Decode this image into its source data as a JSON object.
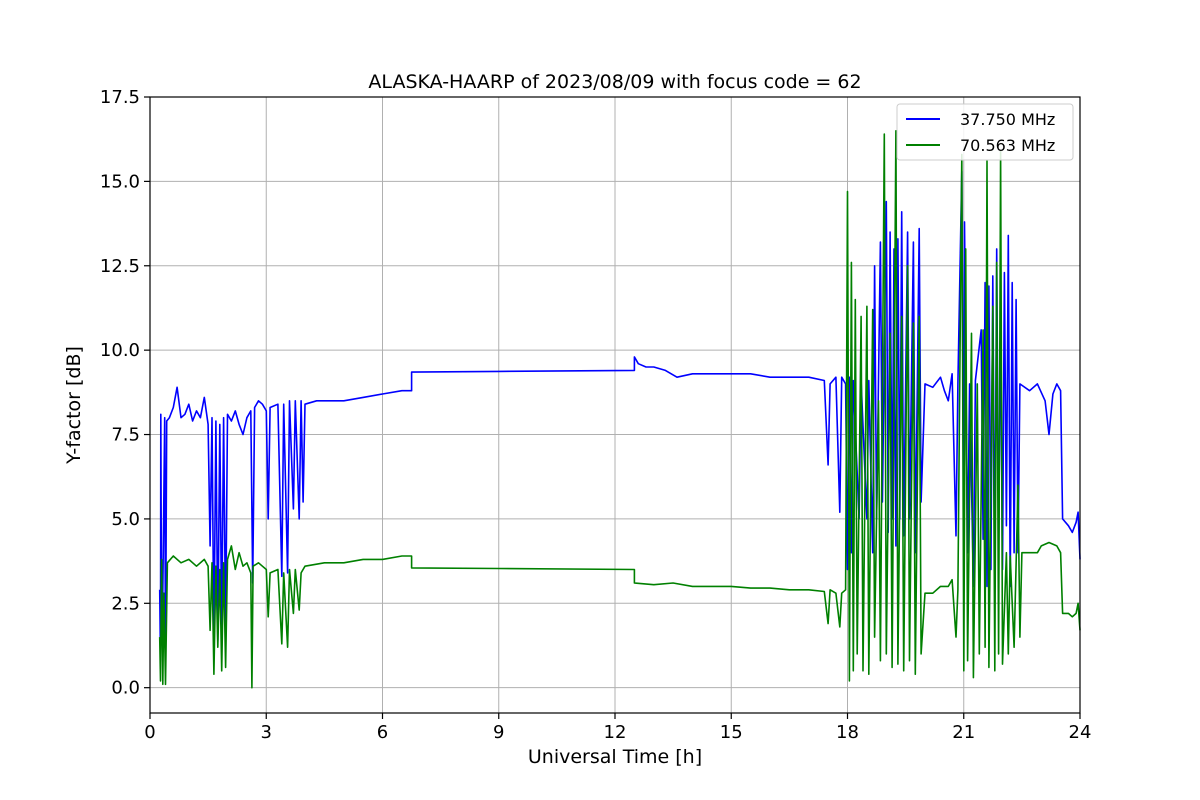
{
  "chart_data": {
    "type": "line",
    "title": "ALASKA-HAARP of 2023/08/09 with focus code = 62",
    "xlabel": "Universal Time [h]",
    "ylabel": "Y-factor [dB]",
    "xlim": [
      0,
      24
    ],
    "ylim": [
      -0.75,
      17.5
    ],
    "xticks": [
      0,
      3,
      6,
      9,
      12,
      15,
      18,
      21,
      24
    ],
    "xtick_labels": [
      "0",
      "3",
      "6",
      "9",
      "12",
      "15",
      "18",
      "21",
      "24"
    ],
    "yticks": [
      0,
      2.5,
      5,
      7.5,
      10,
      12.5,
      15,
      17.5
    ],
    "ytick_labels": [
      "0.0",
      "2.5",
      "5.0",
      "7.5",
      "10.0",
      "12.5",
      "15.0",
      "17.5"
    ],
    "grid": true,
    "legend_position": "top-right",
    "series": [
      {
        "name": "37.750 MHz",
        "color": "#0000ff",
        "points": [
          [
            0.25,
            2.9
          ],
          [
            0.27,
            0.8
          ],
          [
            0.28,
            8.1
          ],
          [
            0.3,
            1.5
          ],
          [
            0.33,
            2.8
          ],
          [
            0.38,
            8.0
          ],
          [
            0.4,
            0.5
          ],
          [
            0.43,
            7.9
          ],
          [
            0.5,
            8.0
          ],
          [
            0.6,
            8.3
          ],
          [
            0.7,
            8.9
          ],
          [
            0.8,
            8.0
          ],
          [
            0.9,
            8.1
          ],
          [
            1.0,
            8.4
          ],
          [
            1.1,
            7.9
          ],
          [
            1.2,
            8.2
          ],
          [
            1.3,
            8.0
          ],
          [
            1.4,
            8.6
          ],
          [
            1.5,
            7.8
          ],
          [
            1.55,
            4.2
          ],
          [
            1.6,
            8.0
          ],
          [
            1.65,
            1.3
          ],
          [
            1.7,
            7.9
          ],
          [
            1.75,
            1.4
          ],
          [
            1.8,
            7.8
          ],
          [
            1.85,
            1.6
          ],
          [
            1.9,
            8.0
          ],
          [
            1.95,
            1.6
          ],
          [
            2.0,
            8.1
          ],
          [
            2.1,
            7.9
          ],
          [
            2.2,
            8.2
          ],
          [
            2.3,
            7.8
          ],
          [
            2.4,
            7.5
          ],
          [
            2.5,
            8.0
          ],
          [
            2.6,
            8.2
          ],
          [
            2.65,
            3.1
          ],
          [
            2.7,
            8.3
          ],
          [
            2.8,
            8.5
          ],
          [
            2.9,
            8.4
          ],
          [
            3.0,
            8.2
          ],
          [
            3.05,
            5.0
          ],
          [
            3.1,
            8.3
          ],
          [
            3.3,
            8.4
          ],
          [
            3.4,
            3.3
          ],
          [
            3.45,
            8.4
          ],
          [
            3.55,
            3.4
          ],
          [
            3.6,
            8.5
          ],
          [
            3.7,
            5.3
          ],
          [
            3.75,
            8.5
          ],
          [
            3.85,
            5.0
          ],
          [
            3.9,
            8.5
          ],
          [
            3.95,
            5.5
          ],
          [
            4.0,
            8.4
          ],
          [
            4.3,
            8.5
          ],
          [
            4.6,
            8.5
          ],
          [
            5.0,
            8.5
          ],
          [
            5.5,
            8.6
          ],
          [
            6.0,
            8.7
          ],
          [
            6.5,
            8.8
          ],
          [
            6.75,
            8.8
          ],
          [
            6.75,
            9.35
          ],
          [
            9.0,
            9.37
          ],
          [
            12.5,
            9.4
          ],
          [
            12.5,
            9.8
          ],
          [
            12.6,
            9.6
          ],
          [
            12.8,
            9.5
          ],
          [
            13.0,
            9.5
          ],
          [
            13.3,
            9.4
          ],
          [
            13.6,
            9.2
          ],
          [
            14.0,
            9.3
          ],
          [
            14.5,
            9.3
          ],
          [
            15.0,
            9.3
          ],
          [
            15.5,
            9.3
          ],
          [
            16.0,
            9.2
          ],
          [
            16.5,
            9.2
          ],
          [
            17.0,
            9.2
          ],
          [
            17.4,
            9.1
          ],
          [
            17.5,
            6.6
          ],
          [
            17.55,
            9.0
          ],
          [
            17.7,
            9.2
          ],
          [
            17.8,
            5.2
          ],
          [
            17.85,
            9.2
          ],
          [
            17.95,
            9.0
          ],
          [
            18.0,
            3.5
          ],
          [
            18.05,
            9.2
          ],
          [
            18.1,
            4.0
          ],
          [
            18.15,
            9.1
          ],
          [
            18.3,
            5.0
          ],
          [
            18.35,
            9.1
          ],
          [
            18.5,
            5.0
          ],
          [
            18.55,
            9.1
          ],
          [
            18.65,
            4.0
          ],
          [
            18.7,
            12.5
          ],
          [
            18.75,
            5.0
          ],
          [
            18.85,
            13.2
          ],
          [
            18.9,
            5.5
          ],
          [
            19.0,
            14.4
          ],
          [
            19.05,
            4.6
          ],
          [
            19.1,
            13.5
          ],
          [
            19.15,
            5.0
          ],
          [
            19.2,
            13.0
          ],
          [
            19.25,
            4.2
          ],
          [
            19.3,
            13.3
          ],
          [
            19.35,
            5.0
          ],
          [
            19.4,
            14.1
          ],
          [
            19.45,
            4.5
          ],
          [
            19.55,
            13.5
          ],
          [
            19.6,
            5.0
          ],
          [
            19.7,
            13.2
          ],
          [
            19.75,
            4.0
          ],
          [
            19.85,
            13.6
          ],
          [
            19.9,
            5.5
          ],
          [
            20.0,
            9.0
          ],
          [
            20.2,
            8.9
          ],
          [
            20.4,
            9.2
          ],
          [
            20.5,
            8.8
          ],
          [
            20.6,
            8.5
          ],
          [
            20.7,
            9.3
          ],
          [
            20.8,
            4.5
          ],
          [
            20.85,
            9.0
          ],
          [
            20.95,
            15.3
          ],
          [
            21.0,
            4.2
          ],
          [
            21.02,
            13.8
          ],
          [
            21.1,
            4.0
          ],
          [
            21.15,
            9.0
          ],
          [
            21.25,
            3.0
          ],
          [
            21.3,
            9.1
          ],
          [
            21.45,
            10.6
          ],
          [
            21.5,
            4.4
          ],
          [
            21.55,
            12.0
          ],
          [
            21.6,
            3.0
          ],
          [
            21.65,
            11.9
          ],
          [
            21.7,
            3.5
          ],
          [
            21.75,
            12.2
          ],
          [
            21.8,
            3.4
          ],
          [
            21.85,
            13.0
          ],
          [
            21.9,
            4.0
          ],
          [
            21.95,
            11.0
          ],
          [
            22.0,
            3.5
          ],
          [
            22.05,
            12.3
          ],
          [
            22.1,
            4.8
          ],
          [
            22.15,
            13.4
          ],
          [
            22.2,
            3.0
          ],
          [
            22.25,
            12.0
          ],
          [
            22.3,
            4.0
          ],
          [
            22.35,
            11.5
          ],
          [
            22.4,
            4.0
          ],
          [
            22.45,
            9.0
          ],
          [
            22.7,
            8.8
          ],
          [
            22.9,
            9.0
          ],
          [
            23.1,
            8.5
          ],
          [
            23.2,
            7.5
          ],
          [
            23.3,
            8.7
          ],
          [
            23.4,
            9.0
          ],
          [
            23.5,
            8.8
          ],
          [
            23.55,
            5.0
          ],
          [
            23.7,
            4.8
          ],
          [
            23.8,
            4.6
          ],
          [
            23.9,
            4.9
          ],
          [
            23.95,
            5.2
          ],
          [
            24.0,
            3.8
          ]
        ]
      },
      {
        "name": "70.563 MHz",
        "color": "#008000",
        "points": [
          [
            0.25,
            1.5
          ],
          [
            0.27,
            0.2
          ],
          [
            0.3,
            3.8
          ],
          [
            0.33,
            0.1
          ],
          [
            0.36,
            2.8
          ],
          [
            0.4,
            0.1
          ],
          [
            0.45,
            3.7
          ],
          [
            0.6,
            3.9
          ],
          [
            0.8,
            3.7
          ],
          [
            1.0,
            3.8
          ],
          [
            1.2,
            3.6
          ],
          [
            1.4,
            3.8
          ],
          [
            1.5,
            3.6
          ],
          [
            1.55,
            1.7
          ],
          [
            1.6,
            3.7
          ],
          [
            1.65,
            0.4
          ],
          [
            1.7,
            3.6
          ],
          [
            1.75,
            1.2
          ],
          [
            1.8,
            3.5
          ],
          [
            1.85,
            0.5
          ],
          [
            1.9,
            3.7
          ],
          [
            1.95,
            0.6
          ],
          [
            2.0,
            3.8
          ],
          [
            2.1,
            4.2
          ],
          [
            2.2,
            3.5
          ],
          [
            2.3,
            4.0
          ],
          [
            2.4,
            3.6
          ],
          [
            2.5,
            3.7
          ],
          [
            2.6,
            3.4
          ],
          [
            2.63,
            0.0
          ],
          [
            2.66,
            3.6
          ],
          [
            2.8,
            3.7
          ],
          [
            2.9,
            3.6
          ],
          [
            3.0,
            3.5
          ],
          [
            3.05,
            2.1
          ],
          [
            3.1,
            3.4
          ],
          [
            3.3,
            3.5
          ],
          [
            3.4,
            1.3
          ],
          [
            3.45,
            3.4
          ],
          [
            3.55,
            1.2
          ],
          [
            3.6,
            3.5
          ],
          [
            3.7,
            2.2
          ],
          [
            3.75,
            3.5
          ],
          [
            3.85,
            2.3
          ],
          [
            3.9,
            3.4
          ],
          [
            4.0,
            3.6
          ],
          [
            4.5,
            3.7
          ],
          [
            5.0,
            3.7
          ],
          [
            5.5,
            3.8
          ],
          [
            6.0,
            3.8
          ],
          [
            6.5,
            3.9
          ],
          [
            6.75,
            3.9
          ],
          [
            6.75,
            3.55
          ],
          [
            9.0,
            3.53
          ],
          [
            12.5,
            3.5
          ],
          [
            12.5,
            3.1
          ],
          [
            13.0,
            3.05
          ],
          [
            13.5,
            3.1
          ],
          [
            14.0,
            3.0
          ],
          [
            14.5,
            3.0
          ],
          [
            15.0,
            3.0
          ],
          [
            15.5,
            2.95
          ],
          [
            16.0,
            2.95
          ],
          [
            16.5,
            2.9
          ],
          [
            17.0,
            2.9
          ],
          [
            17.4,
            2.85
          ],
          [
            17.5,
            1.9
          ],
          [
            17.55,
            2.9
          ],
          [
            17.7,
            2.8
          ],
          [
            17.8,
            1.8
          ],
          [
            17.85,
            2.8
          ],
          [
            17.95,
            2.9
          ],
          [
            18.0,
            14.7
          ],
          [
            18.05,
            0.2
          ],
          [
            18.1,
            12.6
          ],
          [
            18.15,
            0.5
          ],
          [
            18.2,
            11.5
          ],
          [
            18.25,
            1.0
          ],
          [
            18.35,
            11.0
          ],
          [
            18.4,
            0.5
          ],
          [
            18.5,
            11.3
          ],
          [
            18.55,
            0.4
          ],
          [
            18.65,
            11.2
          ],
          [
            18.7,
            1.5
          ],
          [
            18.8,
            8.5
          ],
          [
            18.85,
            0.8
          ],
          [
            18.95,
            16.4
          ],
          [
            19.0,
            1.0
          ],
          [
            19.1,
            10.5
          ],
          [
            19.15,
            0.6
          ],
          [
            19.25,
            16.5
          ],
          [
            19.3,
            0.7
          ],
          [
            19.4,
            11.0
          ],
          [
            19.45,
            0.5
          ],
          [
            19.55,
            12.5
          ],
          [
            19.6,
            0.8
          ],
          [
            19.7,
            10.8
          ],
          [
            19.75,
            0.4
          ],
          [
            19.85,
            11.0
          ],
          [
            19.9,
            1.0
          ],
          [
            20.0,
            2.8
          ],
          [
            20.2,
            2.8
          ],
          [
            20.4,
            3.0
          ],
          [
            20.6,
            3.0
          ],
          [
            20.7,
            3.2
          ],
          [
            20.8,
            1.5
          ],
          [
            20.85,
            2.9
          ],
          [
            20.95,
            15.8
          ],
          [
            21.0,
            0.5
          ],
          [
            21.05,
            13.0
          ],
          [
            21.1,
            0.8
          ],
          [
            21.2,
            10.5
          ],
          [
            21.25,
            0.3
          ],
          [
            21.35,
            9.0
          ],
          [
            21.4,
            1.0
          ],
          [
            21.5,
            10.6
          ],
          [
            21.55,
            1.2
          ],
          [
            21.6,
            15.6
          ],
          [
            21.65,
            0.6
          ],
          [
            21.75,
            11.3
          ],
          [
            21.8,
            0.5
          ],
          [
            21.85,
            12.6
          ],
          [
            21.9,
            1.0
          ],
          [
            21.95,
            15.9
          ],
          [
            22.0,
            0.7
          ],
          [
            22.1,
            4.0
          ],
          [
            22.15,
            1.0
          ],
          [
            22.2,
            3.9
          ],
          [
            22.3,
            1.2
          ],
          [
            22.4,
            6.0
          ],
          [
            22.45,
            1.5
          ],
          [
            22.5,
            4.0
          ],
          [
            22.7,
            4.0
          ],
          [
            22.9,
            4.0
          ],
          [
            23.0,
            4.2
          ],
          [
            23.2,
            4.3
          ],
          [
            23.4,
            4.2
          ],
          [
            23.5,
            4.0
          ],
          [
            23.55,
            2.2
          ],
          [
            23.7,
            2.2
          ],
          [
            23.8,
            2.1
          ],
          [
            23.9,
            2.2
          ],
          [
            23.95,
            2.5
          ],
          [
            24.0,
            1.7
          ]
        ]
      }
    ]
  }
}
